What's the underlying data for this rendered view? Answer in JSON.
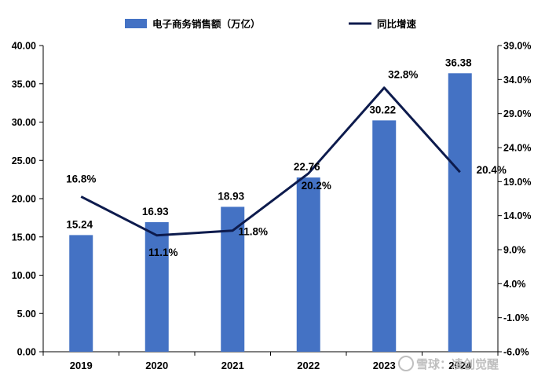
{
  "chart_data": {
    "type": "bar",
    "categories": [
      "2019",
      "2020",
      "2021",
      "2022",
      "2023",
      "2024"
    ],
    "series": [
      {
        "name": "电子商务销售额（万亿）",
        "type": "bar",
        "axis": "left",
        "color": "#4472c4",
        "values": [
          15.24,
          16.93,
          18.93,
          22.76,
          30.22,
          36.38
        ],
        "labels": [
          "15.24",
          "16.93",
          "18.93",
          "22.76",
          "30.22",
          "36.38"
        ]
      },
      {
        "name": "同比增速",
        "type": "line",
        "axis": "right",
        "color": "#0d1b4d",
        "values": [
          16.8,
          11.1,
          11.8,
          20.2,
          32.8,
          20.4
        ],
        "labels": [
          "16.8%",
          "11.1%",
          "11.8%",
          "20.2%",
          "32.8%",
          "20.4%"
        ]
      }
    ],
    "y_left": {
      "ylim": [
        0,
        40
      ],
      "ticks": [
        "0.00",
        "5.00",
        "10.00",
        "15.00",
        "20.00",
        "25.00",
        "30.00",
        "35.00",
        "40.00"
      ]
    },
    "y_right": {
      "ylim": [
        -6,
        39
      ],
      "ticks": [
        "-6.0%",
        "-1.0%",
        "4.0%",
        "9.0%",
        "14.0%",
        "19.0%",
        "24.0%",
        "29.0%",
        "34.0%",
        "39.0%"
      ]
    },
    "legend_position": "top",
    "grid": false
  },
  "watermark": "雪球：凌创觉醒"
}
